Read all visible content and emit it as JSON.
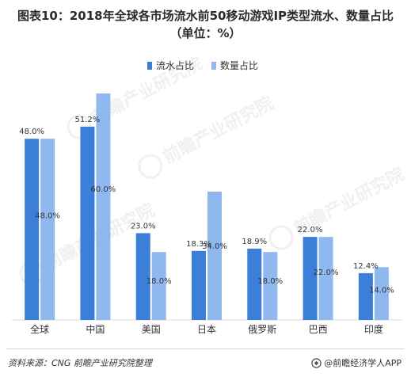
{
  "title_line1": "图表10：2018年全球各市场流水前50移动游戏IP类型流水、数量占比",
  "title_line2": "（单位：%）",
  "source": "资料来源：CNG   前瞻产业研究院整理",
  "brand": "@前瞻经济学人APP",
  "watermark": "前瞻产业研究院",
  "colors": {
    "series1": "#3b7fd9",
    "series2": "#8fb8ef"
  },
  "chart_data": {
    "type": "bar",
    "categories": [
      "全球",
      "中国",
      "美国",
      "日本",
      "俄罗斯",
      "巴西",
      "印度"
    ],
    "series": [
      {
        "name": "流水占比",
        "values": [
          48.0,
          51.2,
          23.0,
          18.3,
          18.9,
          22.0,
          12.4
        ],
        "labels": [
          "48.0%",
          "51.2%",
          "23.0%",
          "18.3%",
          "18.9%",
          "22.0%",
          "12.4%"
        ]
      },
      {
        "name": "数量占比",
        "values": [
          48.0,
          60.0,
          18.0,
          34.0,
          18.0,
          22.0,
          14.0
        ],
        "labels": [
          "48.0%",
          "60.0%",
          "18.0%",
          "34.0%",
          "18.0%",
          "22.0%",
          "14.0%"
        ]
      }
    ],
    "ylim": [
      0,
      60
    ],
    "grid": false,
    "legend": "top-center",
    "xlabel": "",
    "ylabel": ""
  }
}
